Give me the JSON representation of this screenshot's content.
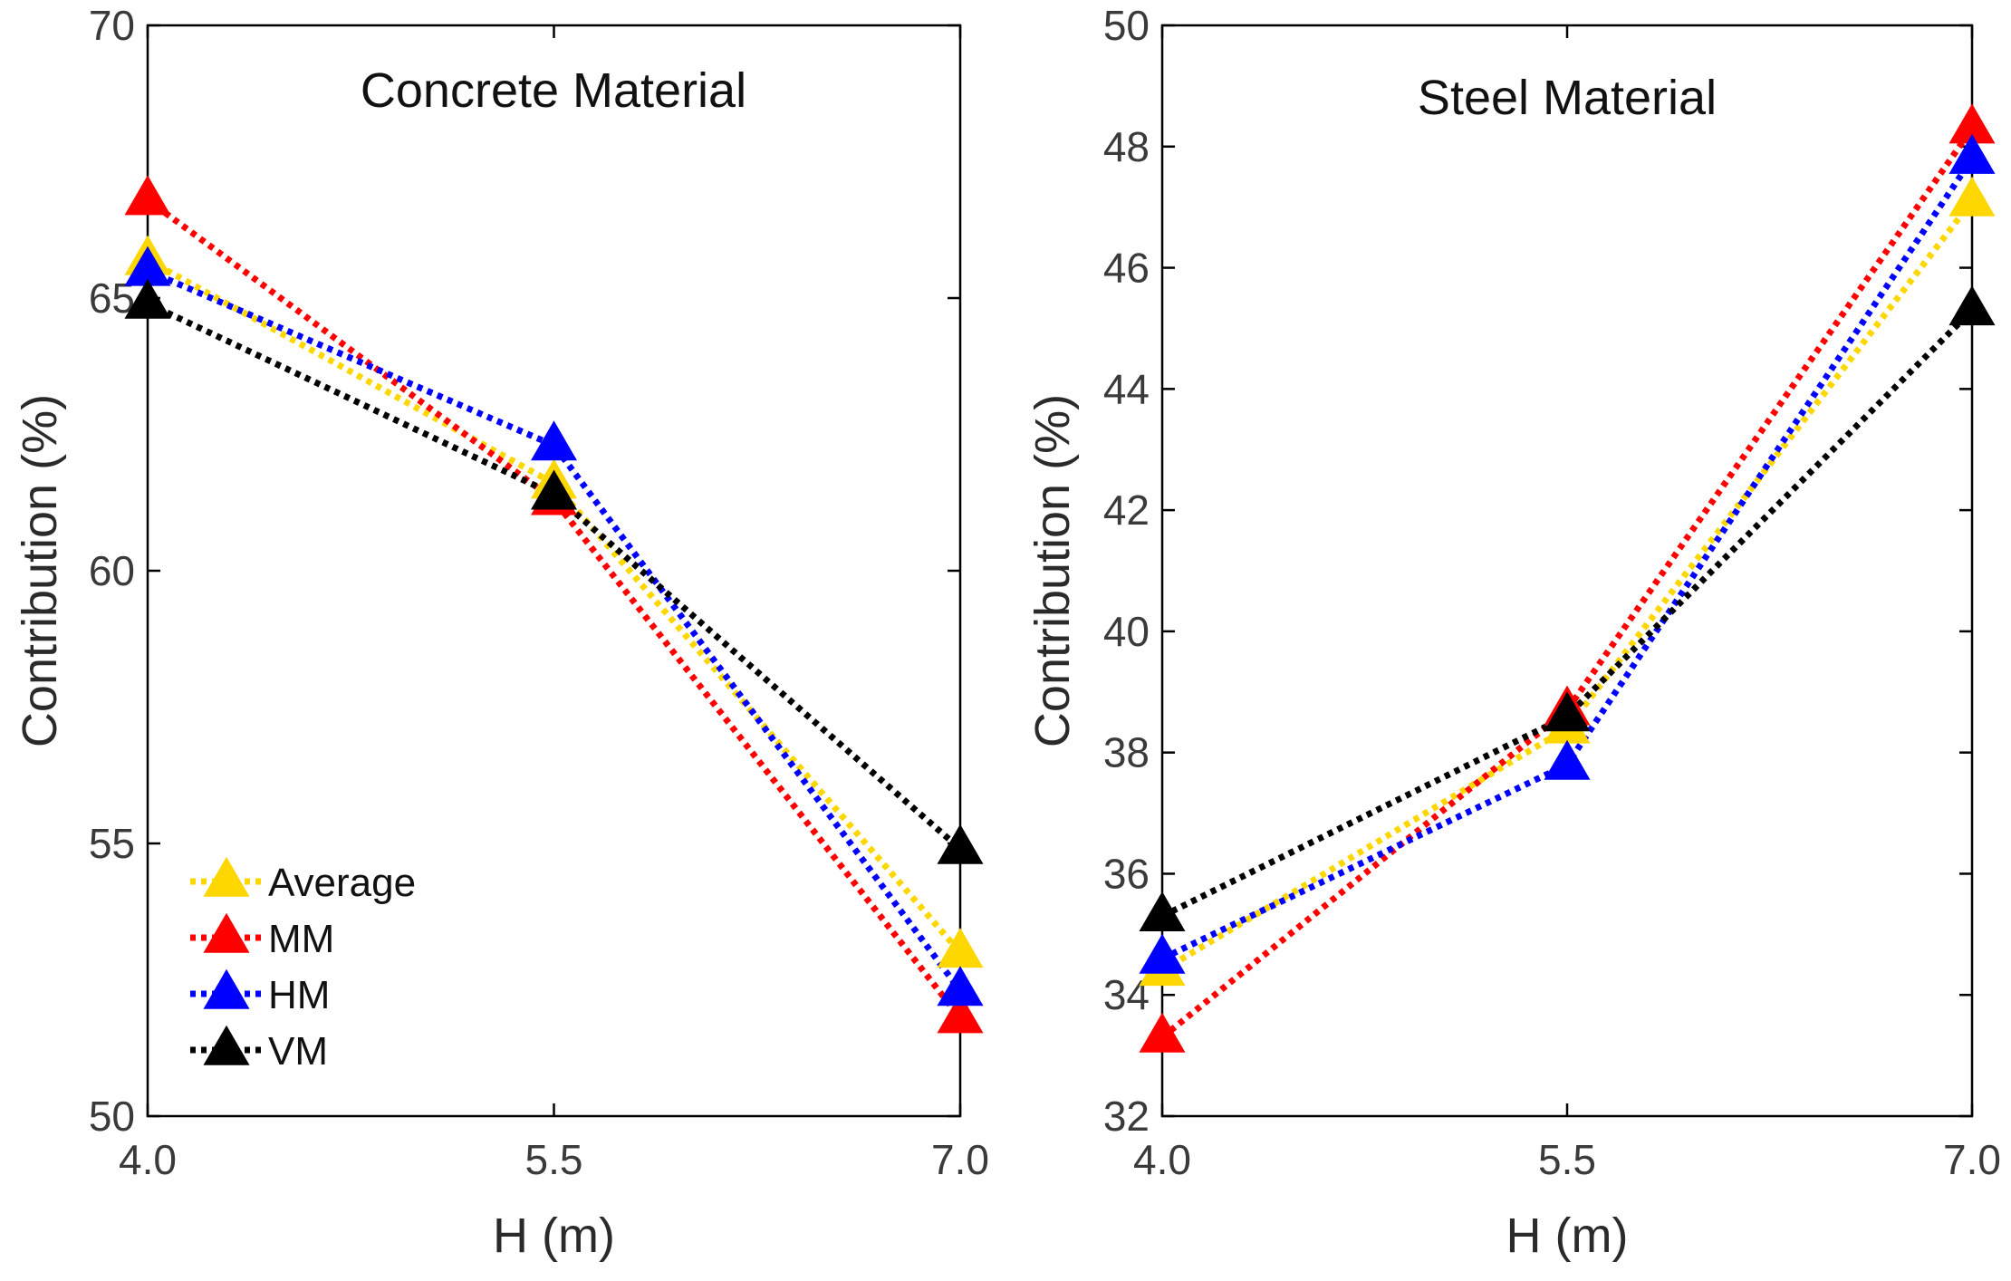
{
  "chart_data": [
    {
      "type": "line",
      "title": "Concrete Material",
      "xlabel": "H (m)",
      "ylabel": "Contribution (%)",
      "x": [
        4.0,
        5.5,
        7.0
      ],
      "x_tick_labels": [
        "4.0",
        "5.5",
        "7.0"
      ],
      "ylim": [
        50,
        70
      ],
      "y_ticks": [
        50,
        55,
        60,
        65,
        70
      ],
      "y_tick_labels": [
        "50",
        "55",
        "60",
        "65",
        "70"
      ],
      "legend_position": "bottom-left",
      "series": [
        {
          "name": "Average",
          "color": "#FFD700",
          "marker": "triangle-up",
          "line_style": "dotted",
          "values": [
            65.7,
            61.6,
            53.0
          ]
        },
        {
          "name": "MM",
          "color": "#FF0000",
          "marker": "triangle-up",
          "line_style": "dotted",
          "values": [
            66.8,
            61.3,
            51.8
          ]
        },
        {
          "name": "HM",
          "color": "#0000FF",
          "marker": "triangle-up",
          "line_style": "dotted",
          "values": [
            65.5,
            62.3,
            52.3
          ]
        },
        {
          "name": "VM",
          "color": "#000000",
          "marker": "triangle-up",
          "line_style": "dotted",
          "values": [
            64.9,
            61.4,
            54.9
          ]
        }
      ]
    },
    {
      "type": "line",
      "title": "Steel Material",
      "xlabel": "H (m)",
      "ylabel": "Contribution (%)",
      "x": [
        4.0,
        5.5,
        7.0
      ],
      "x_tick_labels": [
        "4.0",
        "5.5",
        "7.0"
      ],
      "ylim": [
        32,
        50
      ],
      "y_ticks": [
        32,
        34,
        36,
        38,
        40,
        42,
        44,
        46,
        48,
        50
      ],
      "y_tick_labels": [
        "32",
        "34",
        "36",
        "38",
        "40",
        "42",
        "44",
        "46",
        "48",
        "50"
      ],
      "series": [
        {
          "name": "Average",
          "color": "#FFD700",
          "marker": "triangle-up",
          "line_style": "dotted",
          "values": [
            34.4,
            38.4,
            47.1
          ]
        },
        {
          "name": "MM",
          "color": "#FF0000",
          "marker": "triangle-up",
          "line_style": "dotted",
          "values": [
            33.3,
            38.7,
            48.3
          ]
        },
        {
          "name": "HM",
          "color": "#0000FF",
          "marker": "triangle-up",
          "line_style": "dotted",
          "values": [
            34.6,
            37.8,
            47.8
          ]
        },
        {
          "name": "VM",
          "color": "#000000",
          "marker": "triangle-up",
          "line_style": "dotted",
          "values": [
            35.3,
            38.6,
            45.3
          ]
        }
      ]
    }
  ]
}
